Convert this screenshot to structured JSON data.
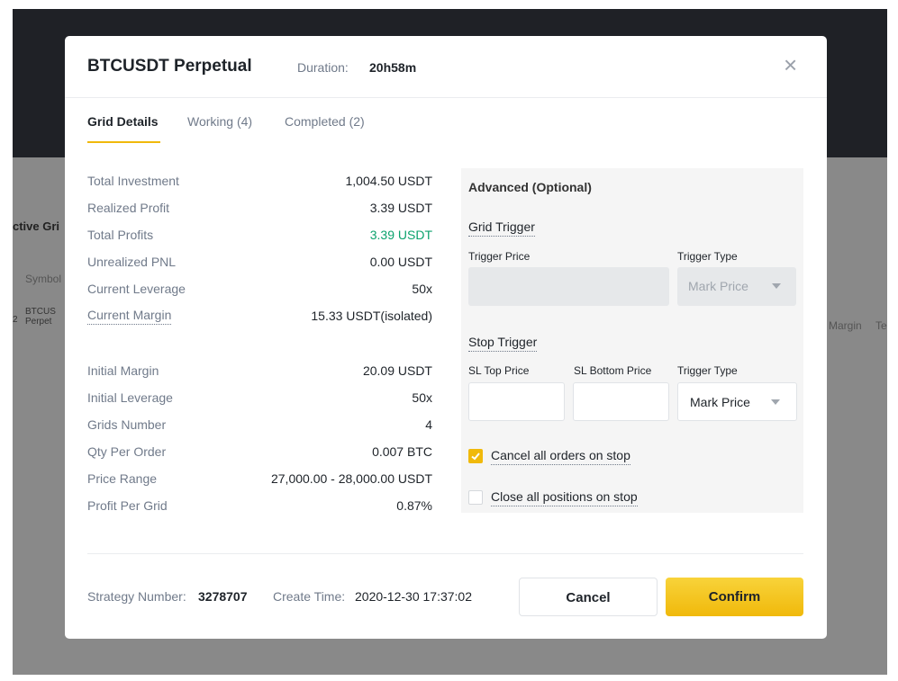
{
  "background": {
    "fragments": [
      "ctive Gri",
      "Symbol",
      "2",
      "BTCUS",
      "Perpet",
      "Margin",
      "Te"
    ]
  },
  "header": {
    "title": "BTCUSDT Perpetual",
    "duration_label": "Duration:",
    "duration_value": "20h58m",
    "close": "×"
  },
  "tabs": [
    "Grid Details",
    "Working (4)",
    "Completed (2)"
  ],
  "details": {
    "groups": [
      [
        {
          "label": "Total Investment",
          "value": "1,004.50 USDT"
        },
        {
          "label": "Realized Profit",
          "value": "3.39 USDT"
        },
        {
          "label": "Total Profits",
          "value": "3.39 USDT",
          "color": "#0ca26d"
        },
        {
          "label": "Unrealized PNL",
          "value": "0.00 USDT"
        },
        {
          "label": "Current Leverage",
          "value": "50x"
        },
        {
          "label": "Current Margin",
          "value": "15.33 USDT(isolated)",
          "underline": true
        }
      ],
      [
        {
          "label": "Initial Margin",
          "value": "20.09 USDT"
        },
        {
          "label": "Initial Leverage",
          "value": "50x"
        },
        {
          "label": "Grids Number",
          "value": "4"
        },
        {
          "label": "Qty Per Order",
          "value": "0.007 BTC"
        },
        {
          "label": "Price Range",
          "value": "27,000.00 - 28,000.00 USDT"
        },
        {
          "label": "Profit Per Grid",
          "value": "0.87%"
        }
      ]
    ]
  },
  "advanced": {
    "title": "Advanced (Optional)",
    "grid_trigger": {
      "title": "Grid Trigger",
      "price_label": "Trigger Price",
      "type_label": "Trigger Type",
      "type_value": "Mark Price"
    },
    "stop_trigger": {
      "title": "Stop Trigger",
      "top_label": "SL Top Price",
      "bottom_label": "SL Bottom Price",
      "type_label": "Trigger Type",
      "type_value": "Mark Price"
    },
    "options": [
      {
        "label": "Cancel all orders on stop",
        "checked": true
      },
      {
        "label": "Close all positions on stop",
        "checked": false
      }
    ]
  },
  "footer": {
    "strategy_label": "Strategy Number:",
    "strategy_value": "3278707",
    "time_label": "Create Time:",
    "time_value": "2020-12-30 17:37:02",
    "cancel": "Cancel",
    "confirm": "Confirm"
  }
}
